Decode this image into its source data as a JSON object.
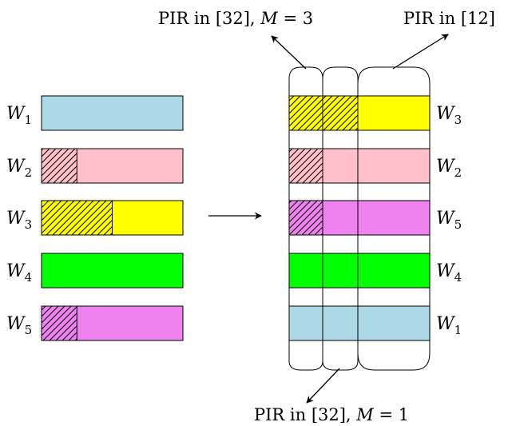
{
  "annotations": {
    "top_left": {
      "prefix": "PIR in [32], ",
      "var": "M",
      "eq": " = 3"
    },
    "top_right": {
      "text": "PIR in [12]"
    },
    "bottom": {
      "prefix": "PIR in [32], ",
      "var": "M",
      "eq": " = 1"
    }
  },
  "colors": {
    "blue": "#add8e6",
    "pink": "#ffc0cb",
    "yellow": "#ffff00",
    "green": "#00ff00",
    "violet": "#ee82ee",
    "stroke": "#000000"
  },
  "left_rows": [
    {
      "var": "W",
      "sub": "1",
      "color": "#add8e6",
      "hatched_fraction": 0
    },
    {
      "var": "W",
      "sub": "2",
      "color": "#ffc0cb",
      "hatched_fraction": 0.25
    },
    {
      "var": "W",
      "sub": "3",
      "color": "#ffff00",
      "hatched_fraction": 0.5
    },
    {
      "var": "W",
      "sub": "4",
      "color": "#00ff00",
      "hatched_fraction": 0
    },
    {
      "var": "W",
      "sub": "5",
      "color": "#ee82ee",
      "hatched_fraction": 0.25
    }
  ],
  "right_rows": [
    {
      "var": "W",
      "sub": "3",
      "color": "#ffff00",
      "hatched_segments": 2
    },
    {
      "var": "W",
      "sub": "2",
      "color": "#ffc0cb",
      "hatched_segments": 1
    },
    {
      "var": "W",
      "sub": "5",
      "color": "#ee82ee",
      "hatched_segments": 1
    },
    {
      "var": "W",
      "sub": "4",
      "color": "#00ff00",
      "hatched_segments": 0
    },
    {
      "var": "W",
      "sub": "1",
      "color": "#add8e6",
      "hatched_segments": 0
    }
  ]
}
